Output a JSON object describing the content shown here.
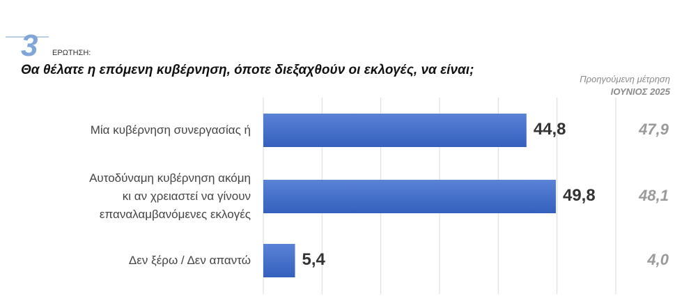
{
  "header": {
    "question_number": "3",
    "question_label": "ΕΡΩΤΗΣΗ:",
    "question": "Θα θέλατε η επόμενη κυβέρνηση, όποτε διεξαχθούν οι εκλογές, να είναι;"
  },
  "previous": {
    "title": "Προηγούμενη μέτρηση",
    "period": "ΙΟΥΝΙΟΣ 2025"
  },
  "chart_data": {
    "type": "bar",
    "orientation": "horizontal",
    "categories": [
      "Μία κυβέρνηση συνεργασίας ή",
      "Αυτοδύναμη κυβέρνηση ακόμη κι αν χρειαστεί να γίνουν επαναλαμβανόμενες εκλογές",
      "Δεν ξέρω / Δεν απαντώ"
    ],
    "category_lines": [
      [
        "Μία κυβέρνηση συνεργασίας ή"
      ],
      [
        "Αυτοδύναμη κυβέρνηση ακόμη",
        "κι αν χρειαστεί να γίνουν",
        "επαναλαμβανόμενες εκλογές"
      ],
      [
        "Δεν ξέρω / Δεν απαντώ"
      ]
    ],
    "values": [
      44.8,
      49.8,
      5.4
    ],
    "value_labels": [
      "44,8",
      "49,8",
      "5,4"
    ],
    "previous_values": [
      47.9,
      48.1,
      4.0
    ],
    "previous_labels": [
      "47,9",
      "48,1",
      "4,0"
    ],
    "xlim": [
      0,
      60
    ],
    "grid": true,
    "bar_color": "#3d68c6"
  }
}
